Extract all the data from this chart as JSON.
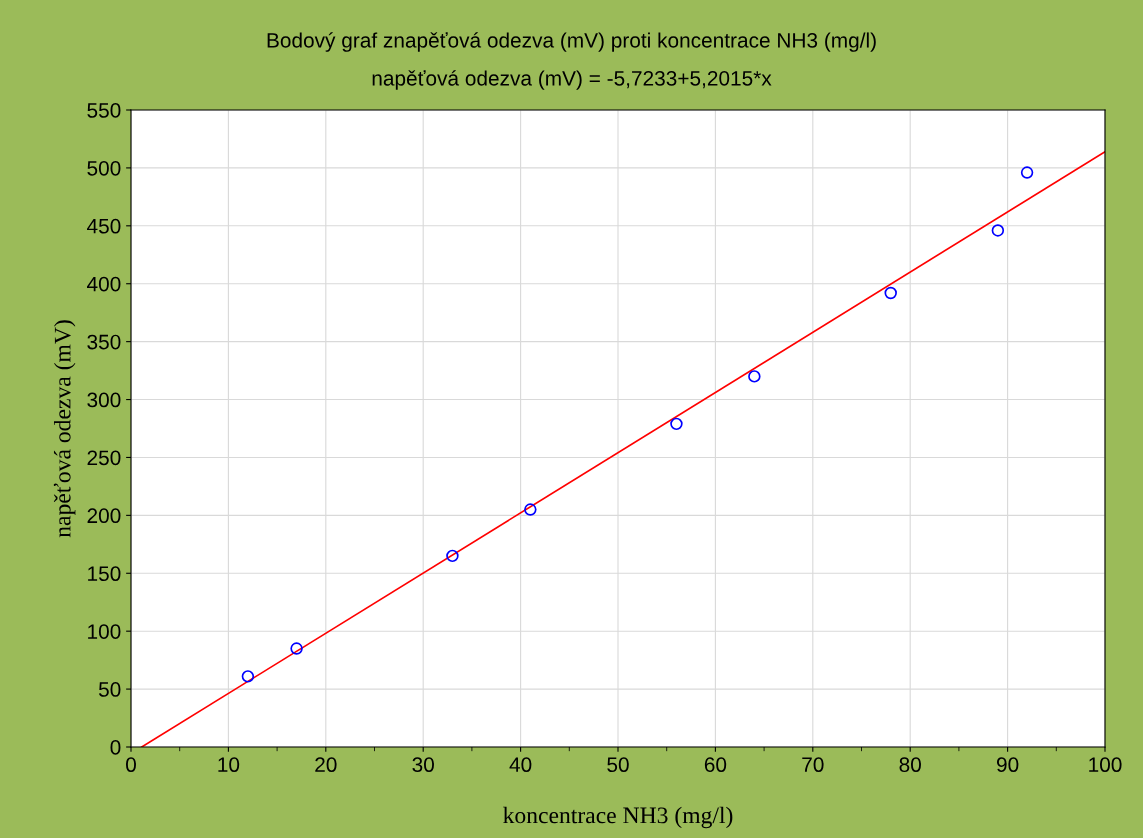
{
  "chart_data": {
    "type": "scatter",
    "title": "Bodový graf znapěťová odezva (mV) proti koncentrace NH3 (mg/l)",
    "subtitle": "napěťová odezva (mV) = -5,7233+5,2015*x",
    "xlabel": "koncentrace NH3 (mg/l)",
    "ylabel": "napěťová odezva (mV)",
    "series": [
      {
        "color": "#0000ff",
        "marker": "circle",
        "x": [
          12,
          17,
          33,
          41,
          56,
          64,
          78,
          89,
          92
        ],
        "values": [
          61,
          85,
          165,
          205,
          279,
          320,
          392,
          446,
          496
        ]
      },
      {
        "type": "line",
        "color": "#ff0000",
        "marker": "none",
        "line_style": "solid",
        "x": [
          1.1,
          100
        ],
        "values": [
          0,
          514
        ]
      }
    ],
    "xlim": [
      0,
      100
    ],
    "xticks": [
      0,
      10,
      20,
      30,
      40,
      50,
      60,
      70,
      80,
      90,
      100
    ],
    "ylim": [
      0,
      550
    ],
    "yticks": [
      0,
      50,
      100,
      150,
      200,
      250,
      300,
      350,
      400,
      450,
      500,
      550
    ],
    "grid": true,
    "legend": false
  }
}
